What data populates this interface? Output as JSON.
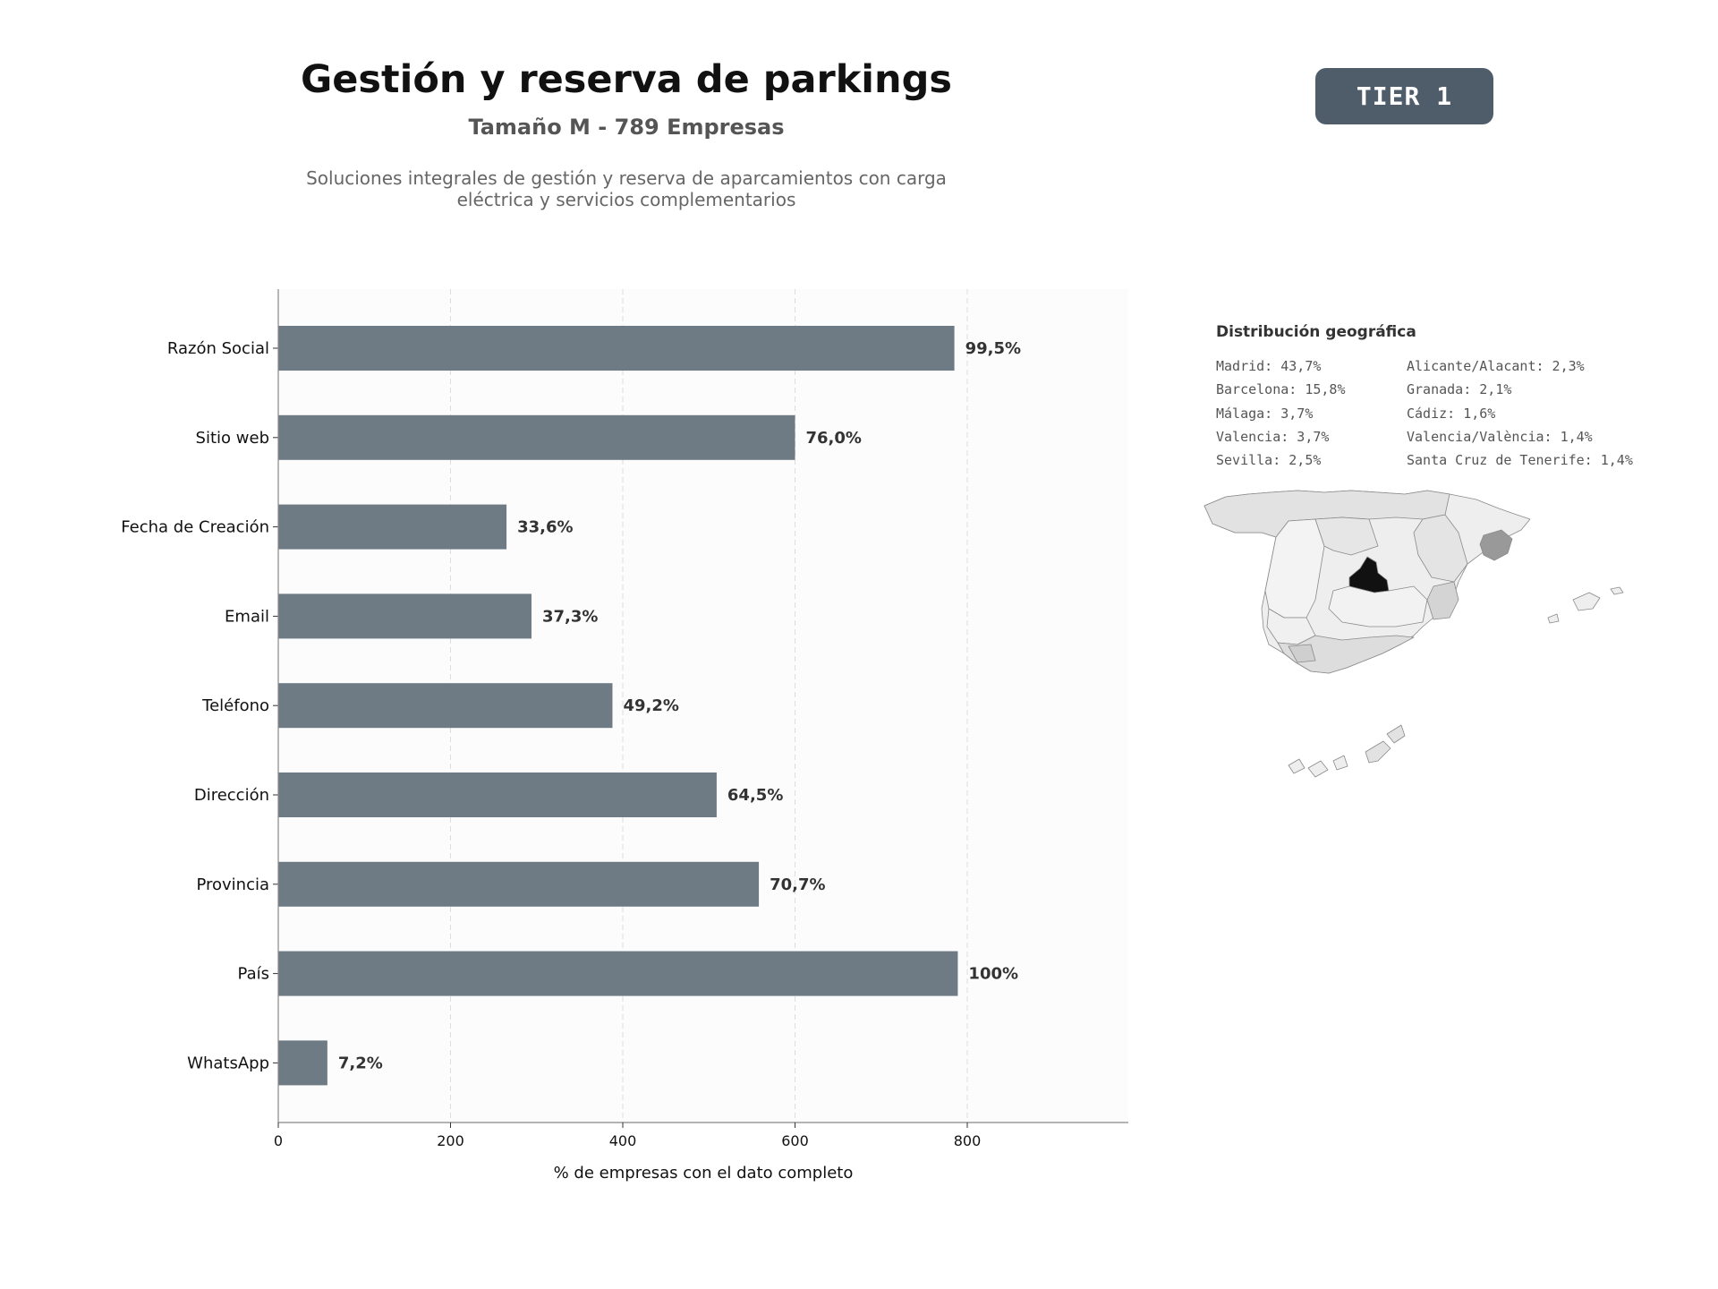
{
  "header": {
    "title": "Gestión y reserva de parkings",
    "subtitle": "Tamaño M - 789 Empresas",
    "description": "Soluciones integrales de gestión y reserva de aparcamientos con carga eléctrica y servicios complementarios",
    "tier_label": "TIER 1"
  },
  "colors": {
    "bar": "#6e7a84",
    "badge": "#4f5d6b",
    "map_highlight": "#111111",
    "map_secondary": "#999999"
  },
  "chart_data": {
    "type": "bar",
    "orientation": "horizontal",
    "categories": [
      "Razón Social",
      "Sitio web",
      "Fecha de Creación",
      "Email",
      "Teléfono",
      "Dirección",
      "Provincia",
      "País",
      "WhatsApp"
    ],
    "values": [
      785,
      600,
      265,
      294,
      388,
      509,
      558,
      789,
      57
    ],
    "value_labels": [
      "99,5%",
      "76,0%",
      "33,6%",
      "37,3%",
      "49,2%",
      "64,5%",
      "70,7%",
      "100%",
      "7,2%"
    ],
    "xlabel": "% de empresas con el dato completo",
    "xlim": [
      0,
      987
    ],
    "xticks": [
      0,
      200,
      400,
      600,
      800
    ],
    "grid": "vertical dashed"
  },
  "geo": {
    "title": "Distribución geográfica",
    "col1": [
      "Madrid: 43,7%",
      "Barcelona: 15,8%",
      "Málaga: 3,7%",
      "Valencia: 3,7%",
      "Sevilla: 2,5%"
    ],
    "col2": [
      "Alicante/Alacant: 2,3%",
      "Granada: 2,1%",
      "Cádiz: 1,6%",
      "Valencia/València: 1,4%",
      "Santa Cruz de Tenerife: 1,4%"
    ]
  }
}
